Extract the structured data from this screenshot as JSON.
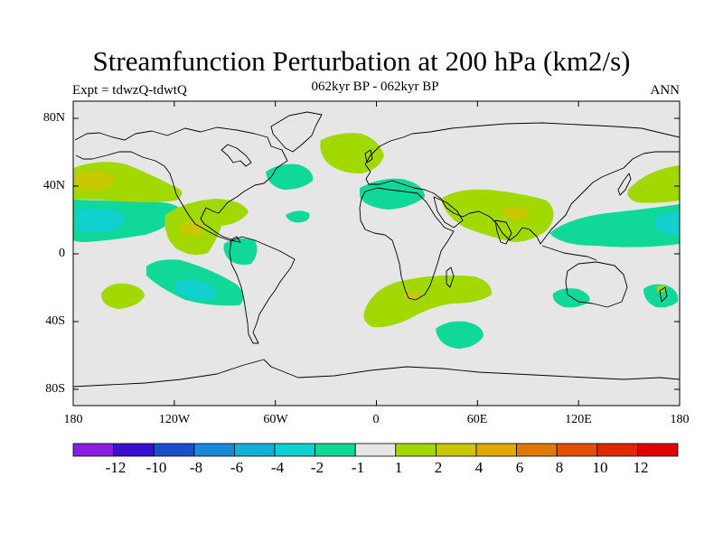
{
  "header": {
    "title": "Streamfunction Perturbation at 200 hPa (km2/s)",
    "left": "Expt = tdwzQ-tdwtQ",
    "center": "062kyr BP - 062kyr BP",
    "right": "ANN"
  },
  "axes": {
    "lat_labels": [
      "80N",
      "40N",
      "0",
      "40S",
      "80S"
    ],
    "lon_labels": [
      "180",
      "120W",
      "60W",
      "0",
      "60E",
      "120E",
      "180"
    ]
  },
  "colorbar": {
    "labels": [
      "-12",
      "-10",
      "-8",
      "-6",
      "-4",
      "-2",
      "-1",
      "1",
      "2",
      "4",
      "6",
      "8",
      "10",
      "12"
    ],
    "colors": [
      "#8a1ee0",
      "#3a10d0",
      "#1850c8",
      "#1888d8",
      "#10b0d8",
      "#10d0d0",
      "#10d898",
      "#e6e6e6",
      "#a0d800",
      "#c8c800",
      "#e0a800",
      "#e07800",
      "#e05000",
      "#e02800",
      "#e00000"
    ]
  },
  "map": {
    "type": "global lat-lon contour map",
    "ocean_color": "#e6e6e6",
    "anomalies": [
      {
        "name": "n-pacific-40N",
        "lon": -170,
        "lat": 42,
        "class": "2 to 4",
        "core": "4 to 6"
      },
      {
        "name": "tropical-w-pacific-neg",
        "lon": -165,
        "lat": 20,
        "class": "-2 to -1",
        "core": "-4 to -2"
      },
      {
        "name": "c-pacific-pos",
        "lon": -105,
        "lat": 18,
        "class": "2 to 4",
        "core": "4 to 6"
      },
      {
        "name": "s-pacific-neg",
        "lon": -110,
        "lat": -22,
        "class": "-2 to -1",
        "core": "-4 to -2"
      },
      {
        "name": "s-pacific-pos",
        "lon": -155,
        "lat": -25,
        "class": "1 to 2"
      },
      {
        "name": "n-atlantic-pos",
        "lon": -22,
        "lat": 60,
        "class": "1 to 2"
      },
      {
        "name": "mediterranean-neg",
        "lon": 20,
        "lat": 38,
        "class": "-2 to -1"
      },
      {
        "name": "s-asia-pos",
        "lon": 75,
        "lat": 25,
        "class": "1 to 2",
        "core": "2 to 4"
      },
      {
        "name": "s-atlantic-pos",
        "lon": 25,
        "lat": -25,
        "class": "1 to 2",
        "core": "2 to 4"
      },
      {
        "name": "s-indian-neg",
        "lon": 50,
        "lat": -48,
        "class": "-2 to -1"
      },
      {
        "name": "w-pacific-neg",
        "lon": 160,
        "lat": 15,
        "class": "-2 to -1"
      },
      {
        "name": "nw-pacific-pos",
        "lon": 165,
        "lat": 40,
        "class": "1 to 2"
      },
      {
        "name": "australia-neg",
        "lon": 105,
        "lat": -25,
        "class": "-2 to -1"
      }
    ]
  }
}
